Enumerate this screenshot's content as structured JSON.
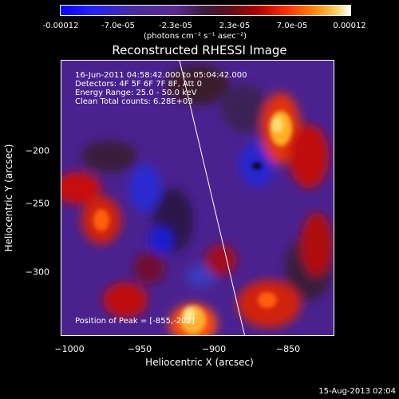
{
  "colorbar": {
    "ticks": [
      "-0.00012",
      "-7.0e-05",
      "-2.3e-05",
      "2.3e-05",
      "7.0e-05",
      "0.00012"
    ],
    "unit": "(photons cm⁻² s⁻¹ asec⁻²)"
  },
  "title": "Reconstructed RHESSI Image",
  "annotations": {
    "time": "16-Jun-2011 04:58:42.000 to 05:04:42.000",
    "detectors": "Detectors: 4F 5F 6F 7F 8F, Att 0",
    "energy": "Energy Range: 25.0 - 50.0 keV",
    "clean": "Clean     Total counts: 6.28E+03",
    "peak": "Position of Peak = [-855,-202]"
  },
  "axes": {
    "xlabel": "Heliocentric X (arcsec)",
    "ylabel": "Heliocentric Y (arcsec)",
    "xticks": [
      "−1000",
      "−950",
      "−900",
      "−850"
    ],
    "yticks": [
      "−200",
      "−250",
      "−300"
    ]
  },
  "footer": "15-Aug-2013 02:04",
  "colors": {
    "background": "#000000",
    "image_base": "#4a2290",
    "positive_high": "#ffd040",
    "negative_low": "#1a1ad0"
  }
}
